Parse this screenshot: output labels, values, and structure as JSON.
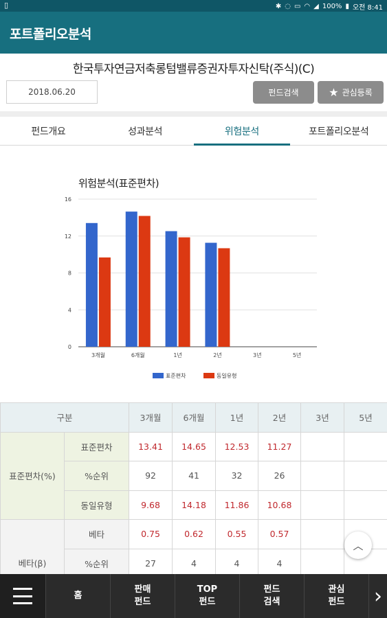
{
  "status_bar": {
    "time": "오전 8:41",
    "battery": "100%"
  },
  "app_bar": {
    "title": "포트폴리오분석"
  },
  "fund": {
    "name": "한국투자연금저축롱텀밸류증권자투자신탁(주식)(C)",
    "date": "2018.06.20",
    "search_button": "펀드검색",
    "favorite_button": "관심등록"
  },
  "tabs": [
    {
      "label": "펀드개요"
    },
    {
      "label": "성과분석"
    },
    {
      "label": "위험분석"
    },
    {
      "label": "포트폴리오분석"
    }
  ],
  "chart_data": {
    "type": "bar",
    "title": "위험분석(표준편차)",
    "categories": [
      "3개월",
      "6개월",
      "1년",
      "2년",
      "3년",
      "5년"
    ],
    "series": [
      {
        "name": "표준편차",
        "color": "#3366cc",
        "values": [
          13.41,
          14.65,
          12.53,
          11.27,
          null,
          null
        ]
      },
      {
        "name": "동일유형",
        "color": "#dc3912",
        "values": [
          9.68,
          14.18,
          11.86,
          10.68,
          null,
          null
        ]
      }
    ],
    "ylim": [
      0,
      16
    ],
    "yticks": [
      "0",
      "4",
      "8",
      "12",
      "16"
    ],
    "grid": true,
    "legend": "bottom"
  },
  "table": {
    "headers": [
      "구분",
      "3개월",
      "6개월",
      "1년",
      "2년",
      "3년",
      "5년"
    ],
    "std_group": "표준편차(%)",
    "std_rows": [
      {
        "label": "표준편차",
        "values": [
          "13.41",
          "14.65",
          "12.53",
          "11.27",
          "",
          ""
        ]
      },
      {
        "label": "%순위",
        "values": [
          "92",
          "41",
          "32",
          "26",
          "",
          ""
        ]
      },
      {
        "label": "동일유형",
        "values": [
          "9.68",
          "14.18",
          "11.86",
          "10.68",
          "",
          ""
        ]
      }
    ],
    "beta_group": "베타(β)",
    "beta_rows": [
      {
        "label": "베타",
        "values": [
          "0.75",
          "0.62",
          "0.55",
          "0.57",
          "",
          ""
        ]
      },
      {
        "label": "%순위",
        "values": [
          "27",
          "4",
          "4",
          "4",
          "",
          ""
        ]
      }
    ]
  },
  "bottom_nav": {
    "items": [
      {
        "label": "홈"
      },
      {
        "label": "판매\n펀드"
      },
      {
        "label": "TOP\n펀드"
      },
      {
        "label": "펀드\n검색"
      },
      {
        "label": "관심\n펀드"
      }
    ]
  }
}
